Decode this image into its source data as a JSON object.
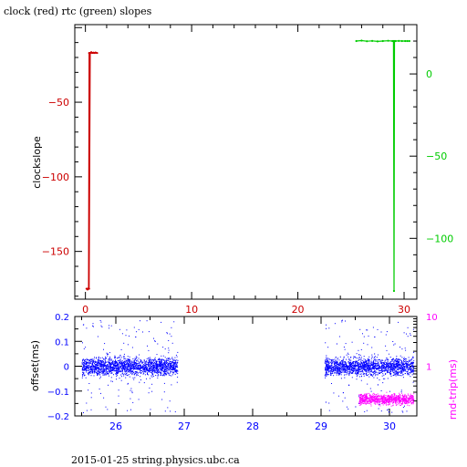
{
  "header": {
    "title": "clock (red) rtc (green) slopes"
  },
  "footer": {
    "caption": "2015-01-25 string.physics.ubc.ca"
  },
  "chart_data": [
    {
      "type": "line",
      "ylabel": "clockslope",
      "xlim": [
        -1,
        31.2
      ],
      "ylim_left": [
        -182,
        2
      ],
      "ylim_right": [
        -137,
        30
      ],
      "xticks": [
        0,
        10,
        20,
        30
      ],
      "yticks_left": [
        -50,
        -100,
        -150
      ],
      "yticks_right": [
        0,
        -50,
        -100
      ],
      "colors": {
        "clock": "#cc0000",
        "rtc": "#00cc00",
        "axes": "#000000"
      },
      "series": [
        {
          "name": "clock",
          "axis": "left",
          "color": "#cc0000",
          "x": [
            0.1,
            0.2,
            0.3,
            0.35,
            0.45,
            0.55,
            0.65,
            0.75,
            0.85,
            0.95,
            1.1,
            0.35,
            0.3,
            0.25,
            0.2
          ],
          "y": [
            -175,
            -175,
            -175,
            -175,
            -17,
            -16.5,
            -17,
            -16.8,
            -17,
            -16.7,
            -17,
            -17,
            -175,
            -175,
            -175.5
          ]
        },
        {
          "name": "rtc",
          "axis": "right",
          "color": "#00cc00",
          "x": [
            25.5,
            26,
            26.5,
            27,
            27.5,
            28,
            28.5,
            28.9,
            29.0,
            29.05,
            29.1,
            29.2,
            29.5,
            29.8,
            30.1,
            30.3,
            30.5
          ],
          "y": [
            20,
            20.3,
            19.9,
            20.1,
            19.8,
            20,
            20.2,
            20,
            20,
            -132,
            20,
            20,
            20.1,
            20,
            20,
            20,
            20
          ]
        }
      ]
    },
    {
      "type": "scatter",
      "ylabel": "offset(ms)",
      "ylabel_right": "rnd-trip(ms)",
      "xlim": [
        25.4,
        30.4
      ],
      "ylim_left": [
        -0.2,
        0.2
      ],
      "ylim_right_log": [
        0.1,
        10
      ],
      "xticks": [
        26,
        27,
        28,
        29,
        30
      ],
      "yticks_left": [
        "0.2",
        "0.1",
        "0",
        "-0.1",
        "-0.2"
      ],
      "yticks_right": [
        "10",
        "1"
      ],
      "colors": {
        "offset": "#0000ff",
        "roundtrip": "#ff00ff"
      },
      "series": [
        {
          "name": "offset",
          "color": "#0000ff",
          "x_ranges": [
            [
              25.5,
              26.9
            ],
            [
              29.05,
              30.35
            ]
          ],
          "center": 0,
          "spread": 0.05
        },
        {
          "name": "roundtrip",
          "color": "#ff00ff",
          "x_ranges": [
            [
              29.55,
              30.35
            ]
          ],
          "level": 0.22
        }
      ]
    }
  ]
}
